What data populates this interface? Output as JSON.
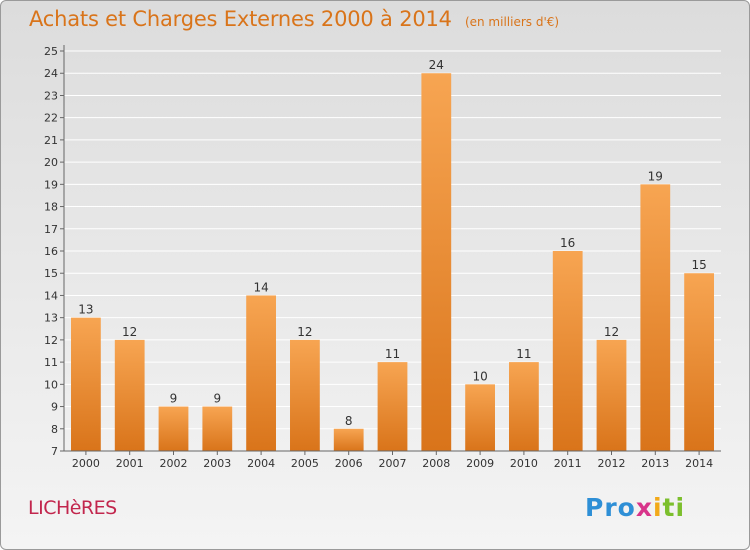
{
  "header": {
    "title": "Achats et Charges Externes 2000 à 2014",
    "subtitle": "(en milliers d'€)"
  },
  "footer": {
    "commune": "LICHèRES",
    "logo_parts": [
      "Pro",
      "x",
      "i",
      "ti"
    ]
  },
  "colors": {
    "bar_light": "#f7a552",
    "bar_dark": "#d9741a",
    "title": "#d9741a",
    "commune": "#c2264d"
  },
  "chart_data": {
    "type": "bar",
    "title": "Achats et Charges Externes 2000 à 2014",
    "subtitle": "(en milliers d'€)",
    "categories": [
      "2000",
      "2001",
      "2002",
      "2003",
      "2004",
      "2005",
      "2006",
      "2007",
      "2008",
      "2009",
      "2010",
      "2011",
      "2012",
      "2013",
      "2014"
    ],
    "values": [
      13,
      12,
      9,
      9,
      14,
      12,
      8,
      11,
      24,
      10,
      11,
      16,
      12,
      19,
      15
    ],
    "ylim": [
      7,
      25
    ],
    "yticks": [
      7,
      8,
      9,
      10,
      11,
      12,
      13,
      14,
      15,
      16,
      17,
      18,
      19,
      20,
      21,
      22,
      23,
      24,
      25
    ],
    "grid": true,
    "legend": "none"
  }
}
